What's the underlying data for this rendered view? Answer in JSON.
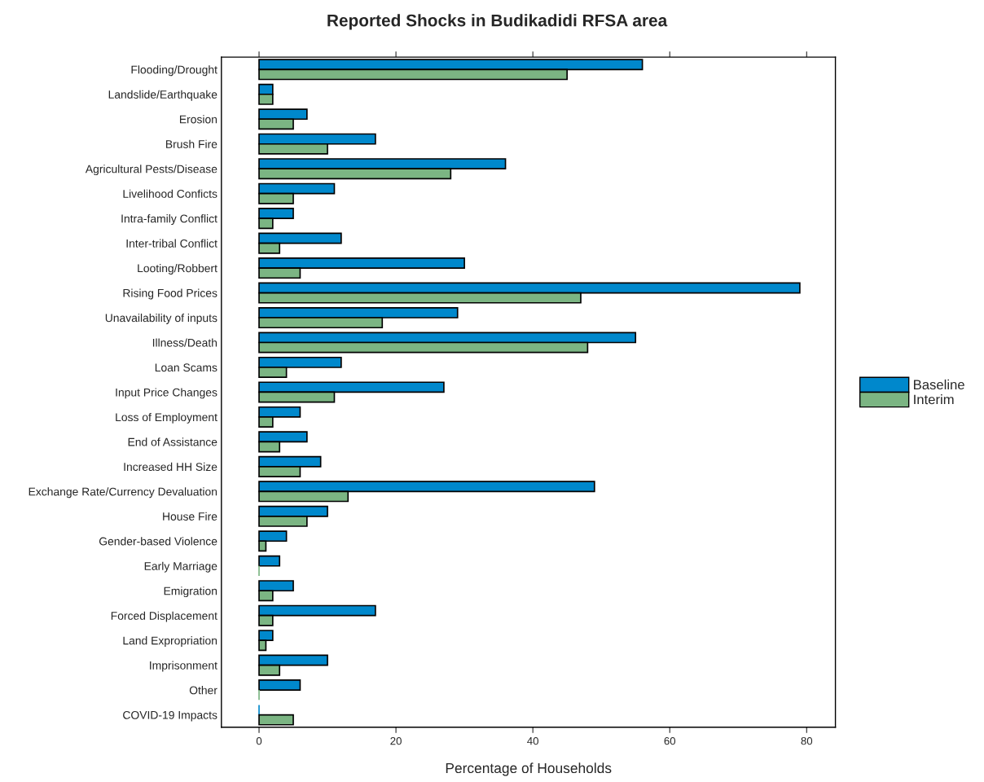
{
  "chart_data": {
    "type": "bar",
    "orientation": "horizontal",
    "title": "Reported Shocks in Budikadidi RFSA area",
    "xlabel": "Percentage of Households",
    "categories": [
      "Flooding/Drought",
      "Landslide/Earthquake",
      "Erosion",
      "Brush Fire",
      "Agricultural Pests/Disease",
      "Livelihood Conficts",
      "Intra-family Conflict",
      "Inter-tribal Conflict",
      "Looting/Robbert",
      "Rising Food Prices",
      "Unavailability of inputs",
      "Illness/Death",
      "Loan Scams",
      "Input Price Changes",
      "Loss of Employment",
      "End of Assistance",
      "Increased HH Size",
      "Exchange Rate/Currency Devaluation",
      "House Fire",
      "Gender-based Violence",
      "Early Marriage",
      "Emigration",
      "Forced Displacement",
      "Land Expropriation",
      "Imprisonment",
      "Other",
      "COVID-19 Impacts"
    ],
    "series": [
      {
        "name": "Baseline",
        "color": "#0088cc",
        "values": [
          56,
          2,
          7,
          17,
          36,
          11,
          5,
          12,
          30,
          79,
          29,
          55,
          12,
          27,
          6,
          7,
          9,
          49,
          10,
          4,
          3,
          5,
          17,
          2,
          10,
          6,
          0
        ]
      },
      {
        "name": "Interim",
        "color": "#7bb583",
        "values": [
          45,
          2,
          5,
          10,
          28,
          5,
          2,
          3,
          6,
          47,
          18,
          48,
          4,
          11,
          2,
          3,
          6,
          13,
          7,
          1,
          0,
          2,
          2,
          1,
          3,
          0,
          5
        ]
      }
    ],
    "xlim": [
      -5.5,
      84.2
    ],
    "xticks": [
      0,
      20,
      40,
      60,
      80
    ],
    "grid": false,
    "legend": "right"
  }
}
